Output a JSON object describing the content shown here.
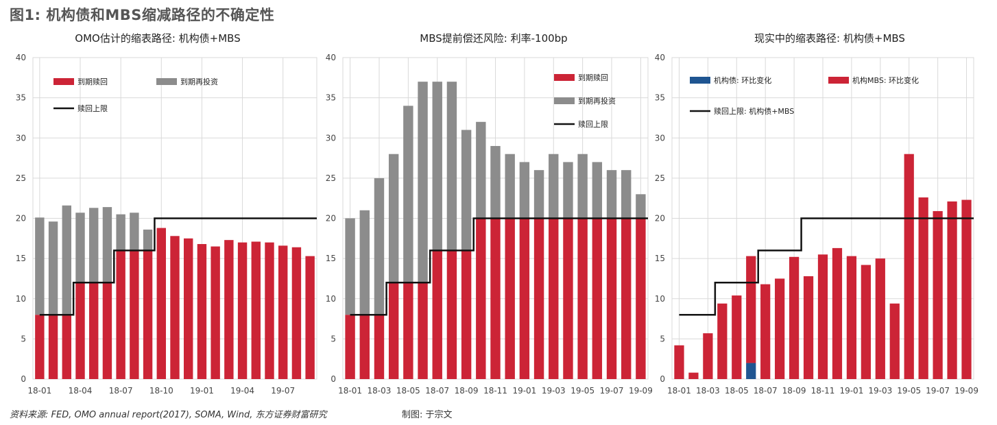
{
  "title": "图1: 机构债和MBS缩减路径的不确定性",
  "footer": {
    "source": "资料来源: FED, OMO annual report(2017), SOMA, Wind, 东方证券财富研究",
    "author": "制图: 于宗文"
  },
  "colors": {
    "red": "#cc2436",
    "gray": "#8c8c8c",
    "black": "#111111",
    "blue": "#1f5591",
    "grid": "#d9d9d9"
  },
  "chart_data": [
    {
      "type": "bar",
      "title": "OMO估计的缩表路径: 机构债+MBS",
      "ylim": [
        0,
        40
      ],
      "yticks": [
        0,
        5,
        10,
        15,
        20,
        25,
        30,
        35,
        40
      ],
      "categories": [
        "18-01",
        "18-02",
        "18-03",
        "18-04",
        "18-05",
        "18-06",
        "18-07",
        "18-08",
        "18-09",
        "18-10",
        "18-11",
        "18-12",
        "19-01",
        "19-02",
        "19-03",
        "19-04",
        "19-05",
        "19-06",
        "19-07",
        "19-08",
        "19-09"
      ],
      "xtick_labels": [
        "18-01",
        "18-04",
        "18-07",
        "18-10",
        "19-01",
        "19-04",
        "19-07"
      ],
      "stacked": true,
      "series": [
        {
          "name": "到期赎回",
          "kind": "bar",
          "color": "#cc2436",
          "values": [
            8,
            8,
            8,
            12,
            12,
            12,
            16,
            16,
            16,
            18.8,
            17.8,
            17.5,
            16.8,
            16.5,
            17.3,
            17.0,
            17.1,
            17.0,
            16.6,
            16.4,
            15.3
          ]
        },
        {
          "name": "到期再投资",
          "kind": "bar",
          "color": "#8c8c8c",
          "values": [
            12.1,
            11.6,
            13.6,
            8.7,
            9.3,
            9.4,
            4.5,
            4.7,
            2.6,
            0,
            0,
            0,
            0,
            0,
            0,
            0,
            0,
            0,
            0,
            0,
            0
          ]
        },
        {
          "name": "赎回上限",
          "kind": "step",
          "color": "#111111",
          "values": [
            8,
            8,
            8,
            12,
            12,
            12,
            16,
            16,
            16,
            20,
            20,
            20,
            20,
            20,
            20,
            20,
            20,
            20,
            20,
            20,
            20
          ]
        }
      ]
    },
    {
      "type": "bar",
      "title": "MBS提前偿还风险: 利率-100bp",
      "ylim": [
        0,
        40
      ],
      "yticks": [
        0,
        5,
        10,
        15,
        20,
        25,
        30,
        35,
        40
      ],
      "categories": [
        "18-01",
        "18-02",
        "18-03",
        "18-04",
        "18-05",
        "18-06",
        "18-07",
        "18-08",
        "18-09",
        "18-10",
        "18-11",
        "18-12",
        "19-01",
        "19-02",
        "19-03",
        "19-04",
        "19-05",
        "19-06",
        "19-07",
        "19-08",
        "19-09"
      ],
      "xtick_labels": [
        "18-01",
        "18-03",
        "18-05",
        "18-07",
        "18-09",
        "18-11",
        "19-01",
        "19-03",
        "19-05",
        "19-07",
        "19-09"
      ],
      "stacked": true,
      "series": [
        {
          "name": "到期赎回",
          "kind": "bar",
          "color": "#cc2436",
          "values": [
            8,
            8,
            8,
            12,
            12,
            12,
            16,
            16,
            16,
            20,
            20,
            20,
            20,
            20,
            20,
            20,
            20,
            20,
            20,
            20,
            20
          ]
        },
        {
          "name": "到期再投资",
          "kind": "bar",
          "color": "#8c8c8c",
          "values": [
            12,
            13,
            17,
            16,
            22,
            25,
            21,
            21,
            15,
            12,
            9,
            8,
            7,
            6,
            8,
            7,
            8,
            7,
            6,
            6,
            3
          ]
        },
        {
          "name": "赎回上限",
          "kind": "step",
          "color": "#111111",
          "values": [
            8,
            8,
            8,
            12,
            12,
            12,
            16,
            16,
            16,
            20,
            20,
            20,
            20,
            20,
            20,
            20,
            20,
            20,
            20,
            20,
            20
          ]
        }
      ]
    },
    {
      "type": "bar",
      "title": "现实中的缩表路径: 机构债+MBS",
      "ylim": [
        0,
        40
      ],
      "yticks": [
        0,
        5,
        10,
        15,
        20,
        25,
        30,
        35,
        40
      ],
      "categories": [
        "18-01",
        "18-02",
        "18-03",
        "18-04",
        "18-05",
        "18-06",
        "18-07",
        "18-08",
        "18-09",
        "18-10",
        "18-11",
        "18-12",
        "19-01",
        "19-02",
        "19-03",
        "19-04",
        "19-05",
        "19-06",
        "19-07",
        "19-08",
        "19-09"
      ],
      "xtick_labels": [
        "18-01",
        "18-03",
        "18-05",
        "18-07",
        "18-09",
        "18-11",
        "19-01",
        "19-03",
        "19-05",
        "19-07",
        "19-09"
      ],
      "stacked": true,
      "series": [
        {
          "name": "机构债: 环比变化",
          "kind": "bar",
          "color": "#1f5591",
          "values": [
            0,
            0,
            0,
            0,
            0,
            2,
            0,
            0,
            0,
            0,
            0,
            0,
            0,
            0,
            0,
            0,
            0,
            0,
            0,
            0,
            0
          ]
        },
        {
          "name": "机构MBS: 环比变化",
          "kind": "bar",
          "color": "#cc2436",
          "values": [
            4.2,
            0.8,
            5.7,
            9.4,
            10.4,
            13.3,
            11.8,
            12.5,
            15.2,
            12.8,
            15.5,
            16.3,
            15.3,
            14.2,
            15.0,
            9.4,
            28.0,
            22.6,
            20.9,
            22.1,
            22.3
          ]
        },
        {
          "name": "赎回上限: 机构债+MBS",
          "kind": "step",
          "color": "#111111",
          "values": [
            8,
            8,
            8,
            12,
            12,
            12,
            16,
            16,
            16,
            20,
            20,
            20,
            20,
            20,
            20,
            20,
            20,
            20,
            20,
            20,
            20
          ]
        }
      ]
    }
  ]
}
